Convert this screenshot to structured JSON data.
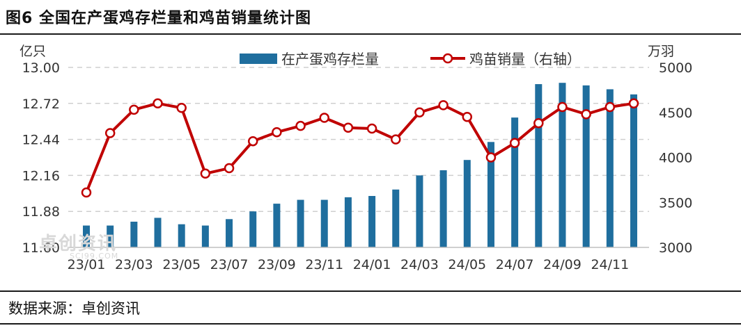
{
  "title": "图6 全国在产蛋鸡存栏量和鸡苗销量统计图",
  "source": "数据来源：卓创资讯",
  "watermark": {
    "logo_text": "卓创资讯",
    "url_text": "SCI99.COM"
  },
  "chart_data": {
    "type": "bar+line",
    "left_axis": {
      "unit": "亿只",
      "ticks": [
        "13.00",
        "12.72",
        "12.44",
        "12.16",
        "11.88",
        "11.60"
      ],
      "ylim": [
        11.6,
        13.0
      ]
    },
    "right_axis": {
      "unit": "万羽",
      "ticks": [
        "5000",
        "4500",
        "4000",
        "3500",
        "3000"
      ],
      "ylim": [
        3000,
        5000
      ]
    },
    "x_tick_labels": [
      "23/01",
      "23/03",
      "23/05",
      "23/07",
      "23/09",
      "23/11",
      "24/01",
      "24/03",
      "24/05",
      "24/07",
      "24/09",
      "24/11"
    ],
    "categories": [
      "23/01",
      "23/02",
      "23/03",
      "23/04",
      "23/05",
      "23/06",
      "23/07",
      "23/08",
      "23/09",
      "23/10",
      "23/11",
      "23/12",
      "24/01",
      "24/02",
      "24/03",
      "24/04",
      "24/05",
      "24/06",
      "24/07",
      "24/08",
      "24/09",
      "24/10",
      "24/11",
      "24/12"
    ],
    "series": [
      {
        "name": "在产蛋鸡存栏量",
        "type": "bar",
        "axis": "left",
        "color": "#1f6e9e",
        "values": [
          11.77,
          11.77,
          11.8,
          11.83,
          11.78,
          11.77,
          11.82,
          11.88,
          11.94,
          11.97,
          11.97,
          11.99,
          12.0,
          12.05,
          12.16,
          12.2,
          12.28,
          12.42,
          12.61,
          12.87,
          12.88,
          12.86,
          12.83,
          12.79
        ]
      },
      {
        "name": "鸡苗销量（右轴）",
        "type": "line",
        "axis": "right",
        "color": "#c00000",
        "values": [
          3610,
          4270,
          4530,
          4600,
          4550,
          3820,
          3880,
          4180,
          4280,
          4350,
          4440,
          4330,
          4320,
          4200,
          4500,
          4580,
          4450,
          4000,
          4160,
          4380,
          4560,
          4480,
          4560,
          4600
        ]
      }
    ],
    "legend_position": "top",
    "grid": "horizontal-dashed"
  }
}
